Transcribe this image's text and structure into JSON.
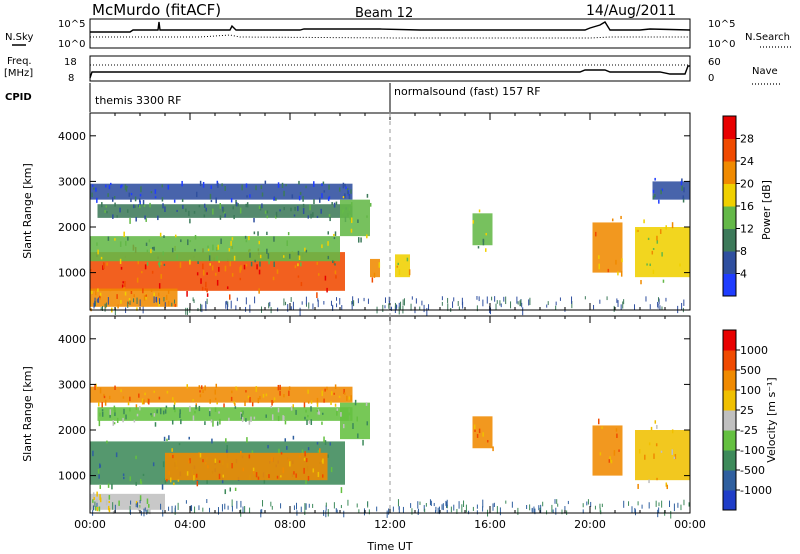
{
  "header": {
    "station": "McMurdo (fitACF)",
    "beam": "Beam 12",
    "date": "14/Aug/2011"
  },
  "noise_panel": {
    "left_label": "N.Sky",
    "right_label": "N.Search",
    "left_ticks": [
      "10^5",
      "10^0"
    ],
    "right_ticks": [
      "10^5",
      "10^0"
    ]
  },
  "freq_panel": {
    "left_label_line1": "Freq.",
    "left_label_line2": "[MHz]",
    "right_label": "Nave",
    "left_ticks": [
      "18",
      "8"
    ],
    "right_ticks": [
      "60",
      "0"
    ]
  },
  "cpid": {
    "label": "CPID",
    "segments": [
      {
        "start_hour": 0,
        "text": "themis 3300 RF"
      },
      {
        "start_hour": 12,
        "text": "normalsound (fast) 157 RF"
      }
    ]
  },
  "axes": {
    "x_label": "Time UT",
    "x_ticks": [
      "00:00",
      "04:00",
      "08:00",
      "12:00",
      "16:00",
      "20:00",
      "00:00"
    ],
    "x_range_hours": [
      0,
      24
    ],
    "y_label": "Slant Range [km]",
    "y_ticks": [
      "1000",
      "2000",
      "3000",
      "4000"
    ],
    "y_range_km": [
      180,
      4500
    ]
  },
  "power_colorbar": {
    "title": "Power [dB]",
    "ticks": [
      "4",
      "8",
      "12",
      "16",
      "20",
      "24",
      "28"
    ],
    "colors": [
      "#1f3dff",
      "#2f4f9f",
      "#3d7a5a",
      "#64b848",
      "#f0d000",
      "#f08a00",
      "#f04a00",
      "#e80000"
    ]
  },
  "velocity_colorbar": {
    "title": "Velocity [m s⁻¹]",
    "ticks": [
      "1000",
      "500",
      "100",
      "25",
      "-25",
      "-100",
      "-500",
      "-1000"
    ],
    "colors": [
      "#1f3dc8",
      "#2f5f9f",
      "#3d8a5a",
      "#64c040",
      "#c0c0c0",
      "#f0c000",
      "#f08a00",
      "#f04a00",
      "#e80000"
    ]
  },
  "chart_data": {
    "type": "heatmap",
    "panels": [
      {
        "name": "power",
        "regions": [
          {
            "t0": 0.0,
            "t1": 10.2,
            "r0": 600,
            "r1": 1450,
            "level": 6
          },
          {
            "t0": 0.0,
            "t1": 3.5,
            "r0": 250,
            "r1": 650,
            "level": 5
          },
          {
            "t0": 0.0,
            "t1": 10.0,
            "r0": 1250,
            "r1": 1800,
            "level": 3
          },
          {
            "t0": 0.0,
            "t1": 10.5,
            "r0": 2600,
            "r1": 2950,
            "level": 1
          },
          {
            "t0": 0.3,
            "t1": 10.5,
            "r0": 2200,
            "r1": 2500,
            "level": 2
          },
          {
            "t0": 10.0,
            "t1": 11.2,
            "r0": 1800,
            "r1": 2600,
            "level": 3
          },
          {
            "t0": 11.2,
            "t1": 11.6,
            "r0": 900,
            "r1": 1300,
            "level": 5
          },
          {
            "t0": 12.2,
            "t1": 12.8,
            "r0": 900,
            "r1": 1400,
            "level": 4
          },
          {
            "t0": 15.3,
            "t1": 16.1,
            "r0": 1600,
            "r1": 2300,
            "level": 3
          },
          {
            "t0": 20.1,
            "t1": 21.3,
            "r0": 1000,
            "r1": 2100,
            "level": 5
          },
          {
            "t0": 21.8,
            "t1": 24.0,
            "r0": 900,
            "r1": 2000,
            "level": 4
          },
          {
            "t0": 22.5,
            "t1": 24.0,
            "r0": 2600,
            "r1": 3000,
            "level": 1
          }
        ]
      },
      {
        "name": "velocity",
        "regions": [
          {
            "t0": 0.0,
            "t1": 10.2,
            "r0": 800,
            "r1": 1750,
            "level": 2
          },
          {
            "t0": 3.0,
            "t1": 9.5,
            "r0": 900,
            "r1": 1500,
            "level": 6
          },
          {
            "t0": 0.0,
            "t1": 3.0,
            "r0": 250,
            "r1": 600,
            "level": 4
          },
          {
            "t0": 0.0,
            "t1": 10.5,
            "r0": 2600,
            "r1": 2950,
            "level": 6
          },
          {
            "t0": 0.3,
            "t1": 10.5,
            "r0": 2200,
            "r1": 2500,
            "level": 3
          },
          {
            "t0": 10.0,
            "t1": 11.2,
            "r0": 1800,
            "r1": 2600,
            "level": 3
          },
          {
            "t0": 15.3,
            "t1": 16.1,
            "r0": 1600,
            "r1": 2300,
            "level": 6
          },
          {
            "t0": 20.1,
            "t1": 21.3,
            "r0": 1000,
            "r1": 2100,
            "level": 6
          },
          {
            "t0": 21.8,
            "t1": 24.0,
            "r0": 900,
            "r1": 2000,
            "level": 5
          }
        ]
      }
    ]
  }
}
